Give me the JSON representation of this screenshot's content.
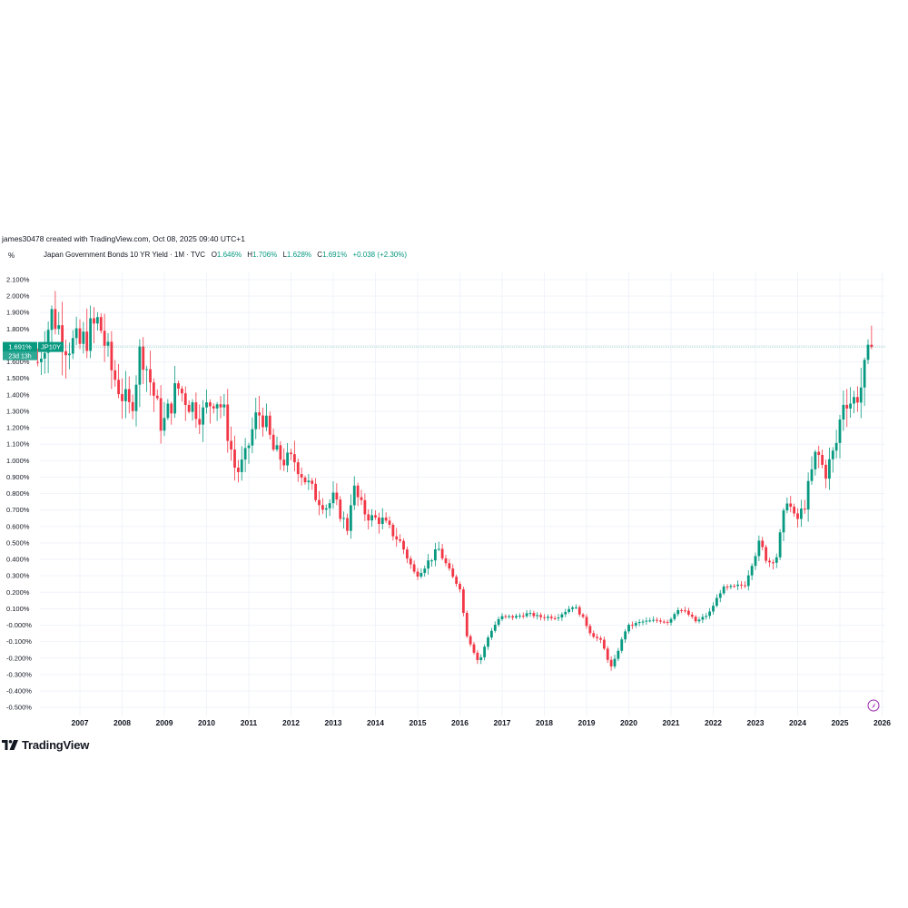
{
  "header": {
    "credit": "james30478 created with TradingView.com, Oct 08, 2025 09:40 UTC+1",
    "unit": "%",
    "symbol_desc": "Japan Government Bonds 10 YR Yield · 1M · TVC",
    "o_label": "O",
    "o_value": "1.646%",
    "h_label": "H",
    "h_value": "1.706%",
    "l_label": "L",
    "l_value": "1.628%",
    "c_label": "C",
    "c_value": "1.691%",
    "change": "+0.038 (+2.30%)"
  },
  "price_tag": {
    "value": "1.691%",
    "ticker": "JP10Y",
    "countdown": "23d 13h"
  },
  "brand": {
    "name": "TradingView"
  },
  "colors": {
    "up": "#089981",
    "down": "#f23645",
    "grid": "#f0f3fa",
    "price_line": "#089981"
  },
  "chart_data": {
    "type": "candlestick",
    "title": "Japan Government Bonds 10 YR Yield · 1M · TVC",
    "ylabel": "%",
    "ylim": [
      -0.55,
      2.15
    ],
    "y_ticks": [
      "2.100%",
      "2.000%",
      "1.900%",
      "1.800%",
      "1.700%",
      "1.600%",
      "1.500%",
      "1.400%",
      "1.300%",
      "1.200%",
      "1.100%",
      "1.000%",
      "0.900%",
      "0.800%",
      "0.700%",
      "0.600%",
      "0.500%",
      "0.400%",
      "0.300%",
      "0.200%",
      "0.100%",
      "-0.000%",
      "-0.100%",
      "-0.200%",
      "-0.300%",
      "-0.400%",
      "-0.500%"
    ],
    "x_ticks": [
      "2007",
      "2008",
      "2009",
      "2010",
      "2011",
      "2012",
      "2013",
      "2014",
      "2015",
      "2016",
      "2017",
      "2018",
      "2019",
      "2020",
      "2021",
      "2022",
      "2023",
      "2024",
      "2025",
      "2026"
    ],
    "last_close": 1.691,
    "anchors": [
      [
        2006.0,
        1.6
      ],
      [
        2006.35,
        1.9
      ],
      [
        2006.65,
        1.72
      ],
      [
        2007.0,
        1.7
      ],
      [
        2007.45,
        1.85
      ],
      [
        2007.75,
        1.55
      ],
      [
        2008.0,
        1.4
      ],
      [
        2008.2,
        1.3
      ],
      [
        2008.45,
        1.7
      ],
      [
        2008.6,
        1.55
      ],
      [
        2008.95,
        1.2
      ],
      [
        2009.3,
        1.45
      ],
      [
        2009.6,
        1.35
      ],
      [
        2009.9,
        1.28
      ],
      [
        2010.2,
        1.4
      ],
      [
        2010.4,
        1.3
      ],
      [
        2010.7,
        0.92
      ],
      [
        2010.9,
        1.0
      ],
      [
        2011.15,
        1.25
      ],
      [
        2011.3,
        1.3
      ],
      [
        2011.6,
        1.05
      ],
      [
        2011.85,
        1.0
      ],
      [
        2012.1,
        1.0
      ],
      [
        2012.3,
        0.9
      ],
      [
        2012.6,
        0.78
      ],
      [
        2012.85,
        0.72
      ],
      [
        2013.0,
        0.77
      ],
      [
        2013.35,
        0.58
      ],
      [
        2013.45,
        0.85
      ],
      [
        2013.7,
        0.7
      ],
      [
        2013.9,
        0.65
      ],
      [
        2014.15,
        0.64
      ],
      [
        2014.6,
        0.5
      ],
      [
        2014.95,
        0.3
      ],
      [
        2015.3,
        0.4
      ],
      [
        2015.5,
        0.46
      ],
      [
        2015.8,
        0.3
      ],
      [
        2016.0,
        0.23
      ],
      [
        2016.15,
        -0.05
      ],
      [
        2016.45,
        -0.23
      ],
      [
        2016.7,
        -0.05
      ],
      [
        2016.95,
        0.05
      ],
      [
        2017.3,
        0.05
      ],
      [
        2017.6,
        0.07
      ],
      [
        2017.9,
        0.05
      ],
      [
        2018.3,
        0.05
      ],
      [
        2018.7,
        0.12
      ],
      [
        2018.9,
        0.05
      ],
      [
        2019.1,
        -0.05
      ],
      [
        2019.35,
        -0.1
      ],
      [
        2019.6,
        -0.27
      ],
      [
        2019.75,
        -0.15
      ],
      [
        2019.95,
        -0.01
      ],
      [
        2020.3,
        0.02
      ],
      [
        2020.7,
        0.03
      ],
      [
        2020.95,
        0.02
      ],
      [
        2021.15,
        0.1
      ],
      [
        2021.35,
        0.08
      ],
      [
        2021.6,
        0.02
      ],
      [
        2021.9,
        0.07
      ],
      [
        2022.2,
        0.22
      ],
      [
        2022.5,
        0.23
      ],
      [
        2022.75,
        0.25
      ],
      [
        2022.95,
        0.41
      ],
      [
        2023.1,
        0.5
      ],
      [
        2023.3,
        0.38
      ],
      [
        2023.5,
        0.42
      ],
      [
        2023.75,
        0.78
      ],
      [
        2023.95,
        0.62
      ],
      [
        2024.15,
        0.72
      ],
      [
        2024.45,
        1.06
      ],
      [
        2024.65,
        0.92
      ],
      [
        2024.9,
        1.08
      ],
      [
        2025.1,
        1.4
      ],
      [
        2025.3,
        1.35
      ],
      [
        2025.5,
        1.45
      ],
      [
        2025.65,
        1.6
      ],
      [
        2025.77,
        1.691
      ]
    ]
  }
}
